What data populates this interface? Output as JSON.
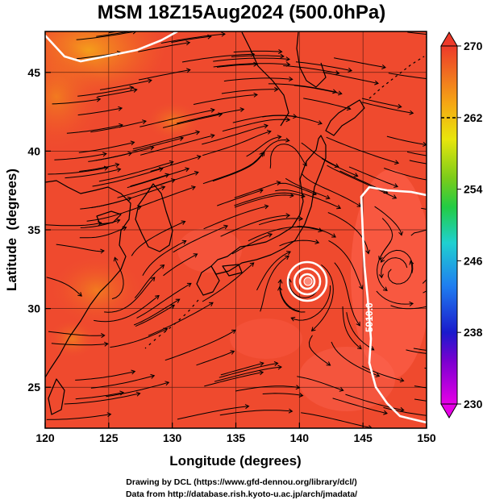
{
  "title": "MSM 18Z15Aug2024 (500.0hPa)",
  "x_axis": {
    "label": "Longitude (degrees)",
    "ticks": [
      120,
      125,
      130,
      135,
      140,
      145,
      150
    ],
    "range": [
      120,
      150
    ]
  },
  "y_axis": {
    "label": "Latitude  (degrees)",
    "ticks": [
      25,
      30,
      35,
      40,
      45
    ],
    "range": [
      22.4,
      47.6
    ]
  },
  "colorbar": {
    "ticks": [
      230,
      238,
      246,
      254,
      262,
      270
    ],
    "range": [
      230,
      270
    ],
    "dashed_levels": [
      262
    ]
  },
  "contour": {
    "label": "5910.0",
    "color": "#ffffff"
  },
  "colors": {
    "field_main": "#ef4a2e",
    "field_warm": "#f26f22",
    "field_hot": "#f49a1c",
    "field_light": "#ff6a5a"
  },
  "credits": {
    "line1": "Drawing by DCL (https://www.gfd-dennou.org/library/dcl/)",
    "line2": "Data from http://database.rish.kyoto-u.ac.jp/arch/jmadata/"
  }
}
